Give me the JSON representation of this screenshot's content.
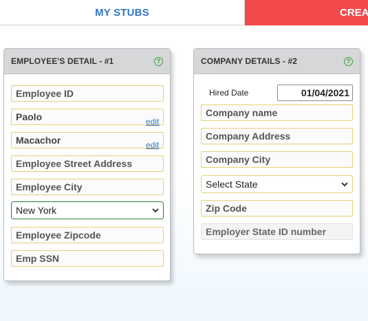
{
  "tabs": {
    "my_stubs": "MY STUBS",
    "create": "CREAT"
  },
  "employee_card": {
    "title": "EMPLOYEE'S DETAIL - #1",
    "help": "?",
    "employee_id_placeholder": "Employee ID",
    "first_name": "Paolo",
    "last_name": "Macachor",
    "edit_label": "edit",
    "street_placeholder": "Employee Street Address",
    "city_placeholder": "Employee City",
    "state_selected": "New York",
    "zip_placeholder": "Employee Zipcode",
    "ssn_placeholder": "Emp SSN"
  },
  "company_card": {
    "title": "COMPANY DETAILS - #2",
    "help": "?",
    "hired_date_label": "Hired Date",
    "hired_date_value": "01/04/2021",
    "company_name_placeholder": "Company name",
    "company_address_placeholder": "Company Address",
    "company_city_placeholder": "Company City",
    "state_selected": "Select State",
    "zip_placeholder": "Zip Code",
    "state_id_placeholder": "Employer State ID number"
  },
  "colors": {
    "tab_active_text": "#2f76c5",
    "tab_create_bg": "#f24a4a",
    "field_border": "#e8cf78",
    "help_icon": "#3aa13a",
    "select_focus_border": "#2c7a33"
  }
}
